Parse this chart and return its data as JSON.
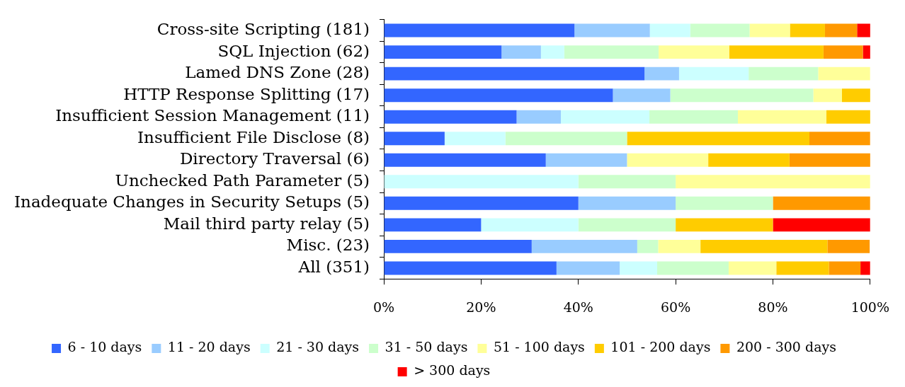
{
  "chart_data": {
    "type": "bar",
    "orientation": "horizontal",
    "stacked": true,
    "categories": [
      "Cross-site Scripting (181)",
      "SQL Injection (62)",
      "Lamed DNS Zone (28)",
      "HTTP Response Splitting (17)",
      "Insufficient Session Management (11)",
      "Insufficient File Disclose (8)",
      "Directory Traversal (6)",
      "Unchecked Path Parameter (5)",
      "Inadequate Changes in Security Setups (5)",
      "Mail third party relay (5)",
      "Misc. (23)",
      "All (351)"
    ],
    "series": [
      {
        "name": "6 - 10 days",
        "color": "#3366ff",
        "values": [
          39.2,
          24.2,
          53.6,
          47.1,
          27.3,
          12.5,
          33.3,
          null,
          40,
          20,
          30.4,
          35.5
        ]
      },
      {
        "name": "11 - 20 days",
        "color": "#99ccff",
        "values": [
          15.5,
          8.1,
          7.1,
          11.8,
          9.1,
          null,
          16.7,
          null,
          20,
          null,
          21.7,
          13.0
        ]
      },
      {
        "name": "21 - 30 days",
        "color": "#ccffff",
        "values": [
          8.3,
          4.8,
          14.3,
          null,
          18.2,
          12.5,
          null,
          40,
          null,
          20,
          null,
          7.7
        ]
      },
      {
        "name": "31 - 50 days",
        "color": "#ccffcc",
        "values": [
          12.2,
          19.4,
          14.3,
          29.4,
          18.2,
          25,
          null,
          20,
          20,
          20,
          4.3,
          14.7
        ]
      },
      {
        "name": "51 - 100 days",
        "color": "#ffff99",
        "values": [
          8.3,
          14.5,
          10.7,
          5.9,
          18.2,
          null,
          16.7,
          40,
          null,
          null,
          8.7,
          9.8
        ]
      },
      {
        "name": "101 - 200 days",
        "color": "#ffcc00",
        "values": [
          7.2,
          19.4,
          null,
          5.9,
          9.1,
          37.5,
          16.7,
          null,
          null,
          20,
          26.1,
          10.8
        ]
      },
      {
        "name": "200 - 300 days",
        "color": "#ff9900",
        "values": [
          6.6,
          8.1,
          null,
          null,
          null,
          12.5,
          16.7,
          null,
          20,
          null,
          8.7,
          6.5
        ]
      },
      {
        "name": "> 300 days",
        "color": "#ff0000",
        "values": [
          2.8,
          1.6,
          null,
          null,
          null,
          null,
          null,
          null,
          null,
          20,
          null,
          2.0
        ]
      }
    ],
    "xlim": [
      0,
      100
    ],
    "xticks": [
      {
        "value": 0,
        "label": "0%"
      },
      {
        "value": 20,
        "label": "20%"
      },
      {
        "value": 40,
        "label": "40%"
      },
      {
        "value": 60,
        "label": "60%"
      },
      {
        "value": 80,
        "label": "80%"
      },
      {
        "value": 100,
        "label": "100%"
      }
    ],
    "grid": false,
    "legend": "bottom"
  }
}
